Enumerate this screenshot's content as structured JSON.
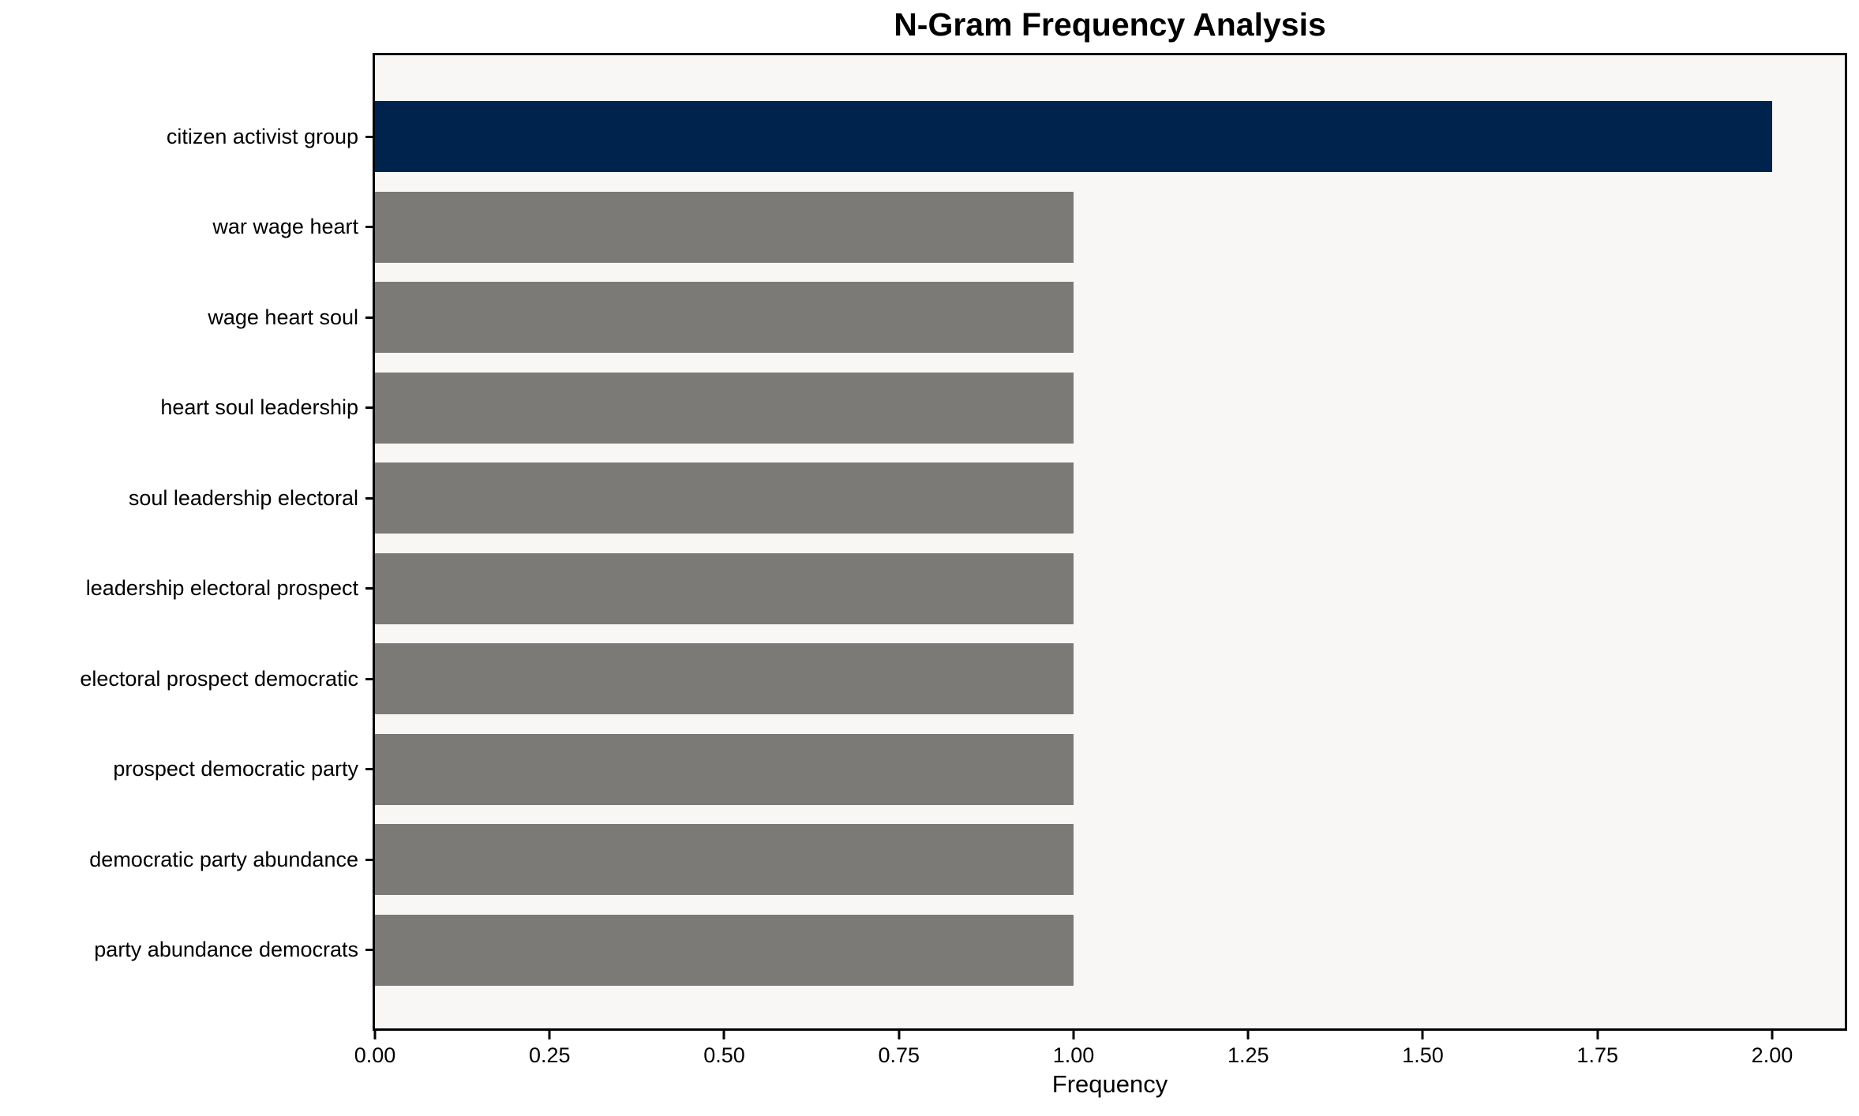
{
  "chart_data": {
    "type": "bar",
    "orientation": "horizontal",
    "title": "N-Gram Frequency Analysis",
    "xlabel": "Frequency",
    "ylabel": "",
    "categories": [
      "citizen activist group",
      "war wage heart",
      "wage heart soul",
      "heart soul leadership",
      "soul leadership electoral",
      "leadership electoral prospect",
      "electoral prospect democratic",
      "prospect democratic party",
      "democratic party abundance",
      "party abundance democrats"
    ],
    "values": [
      2.0,
      1.0,
      1.0,
      1.0,
      1.0,
      1.0,
      1.0,
      1.0,
      1.0,
      1.0
    ],
    "bar_colors": [
      "#00234d",
      "#7b7a77",
      "#7b7a77",
      "#7b7a77",
      "#7b7a77",
      "#7b7a77",
      "#7b7a77",
      "#7b7a77",
      "#7b7a77",
      "#7b7a77"
    ],
    "xlim": [
      0,
      2.104
    ],
    "xticks": {
      "values": [
        0,
        0.25,
        0.5,
        0.75,
        1.0,
        1.25,
        1.5,
        1.75,
        2.0
      ],
      "labels": [
        "0.00",
        "0.25",
        "0.50",
        "0.75",
        "1.00",
        "1.25",
        "1.50",
        "1.75",
        "2.00"
      ]
    },
    "grid": false,
    "legend": null,
    "bar_height_fraction": 0.8,
    "colors": {
      "highlight_bar": "#00234d",
      "default_bar": "#7b7a77",
      "plot_background": "#f8f7f6",
      "figure_background": "#ffffff",
      "axis": "#000000",
      "text": "#000000"
    }
  }
}
